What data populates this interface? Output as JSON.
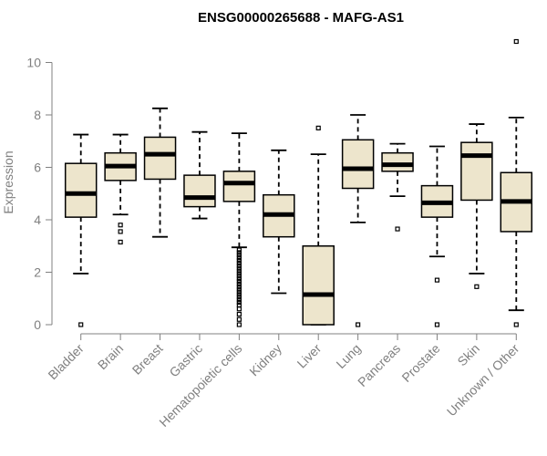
{
  "chart_data": {
    "type": "boxplot",
    "title": "ENSG00000265688 - MAFG-AS1",
    "xlabel": "",
    "ylabel": "Expression",
    "ylim": [
      0,
      11
    ],
    "yticks": [
      0,
      2,
      4,
      6,
      8,
      10
    ],
    "categories": [
      "Bladder",
      "Brain",
      "Breast",
      "Gastric",
      "Hematopoietic cells",
      "Kidney",
      "Liver",
      "Lung",
      "Pancreas",
      "Prostate",
      "Skin",
      "Unknown / Other"
    ],
    "boxes": [
      {
        "name": "Bladder",
        "whisker_low": 1.95,
        "q1": 4.1,
        "median": 5.0,
        "q3": 6.15,
        "whisker_high": 7.25,
        "outliers": [
          0.0
        ]
      },
      {
        "name": "Brain",
        "whisker_low": 4.2,
        "q1": 5.5,
        "median": 6.05,
        "q3": 6.55,
        "whisker_high": 7.25,
        "outliers": [
          3.8,
          3.55,
          3.15
        ]
      },
      {
        "name": "Breast",
        "whisker_low": 3.35,
        "q1": 5.55,
        "median": 6.5,
        "q3": 7.15,
        "whisker_high": 8.25,
        "outliers": []
      },
      {
        "name": "Gastric",
        "whisker_low": 4.05,
        "q1": 4.5,
        "median": 4.85,
        "q3": 5.7,
        "whisker_high": 7.35,
        "outliers": []
      },
      {
        "name": "Hematopoietic cells",
        "whisker_low": 2.95,
        "q1": 4.7,
        "median": 5.4,
        "q3": 5.85,
        "whisker_high": 7.3,
        "outliers": [
          2.85,
          2.75,
          2.65,
          2.55,
          2.45,
          2.35,
          2.25,
          2.15,
          2.05,
          1.95,
          1.85,
          1.75,
          1.65,
          1.55,
          1.45,
          1.35,
          1.25,
          1.15,
          1.05,
          0.95,
          0.85,
          0.75,
          0.6,
          0.4,
          0.2,
          0.0
        ]
      },
      {
        "name": "Kidney",
        "whisker_low": 1.2,
        "q1": 3.35,
        "median": 4.2,
        "q3": 4.95,
        "whisker_high": 6.65,
        "outliers": []
      },
      {
        "name": "Liver",
        "whisker_low": 0.0,
        "q1": 0.0,
        "median": 1.15,
        "q3": 3.0,
        "whisker_high": 6.5,
        "outliers": [
          7.5
        ]
      },
      {
        "name": "Lung",
        "whisker_low": 3.9,
        "q1": 5.2,
        "median": 5.95,
        "q3": 7.05,
        "whisker_high": 8.0,
        "outliers": [
          0.0
        ]
      },
      {
        "name": "Pancreas",
        "whisker_low": 4.9,
        "q1": 5.85,
        "median": 6.1,
        "q3": 6.55,
        "whisker_high": 6.9,
        "outliers": [
          3.65
        ]
      },
      {
        "name": "Prostate",
        "whisker_low": 2.6,
        "q1": 4.1,
        "median": 4.65,
        "q3": 5.3,
        "whisker_high": 6.8,
        "outliers": [
          1.7,
          0.0
        ]
      },
      {
        "name": "Skin",
        "whisker_low": 1.95,
        "q1": 4.75,
        "median": 6.45,
        "q3": 6.95,
        "whisker_high": 7.65,
        "outliers": [
          1.45
        ]
      },
      {
        "name": "Unknown / Other",
        "whisker_low": 0.55,
        "q1": 3.55,
        "median": 4.7,
        "q3": 5.8,
        "whisker_high": 7.9,
        "outliers": [
          10.8,
          0.0
        ]
      }
    ]
  },
  "colors": {
    "box_fill": "#ede5cc",
    "box_stroke": "#000000",
    "axis": "#808080",
    "tick_text": "#808080",
    "title_text": "#000000"
  }
}
